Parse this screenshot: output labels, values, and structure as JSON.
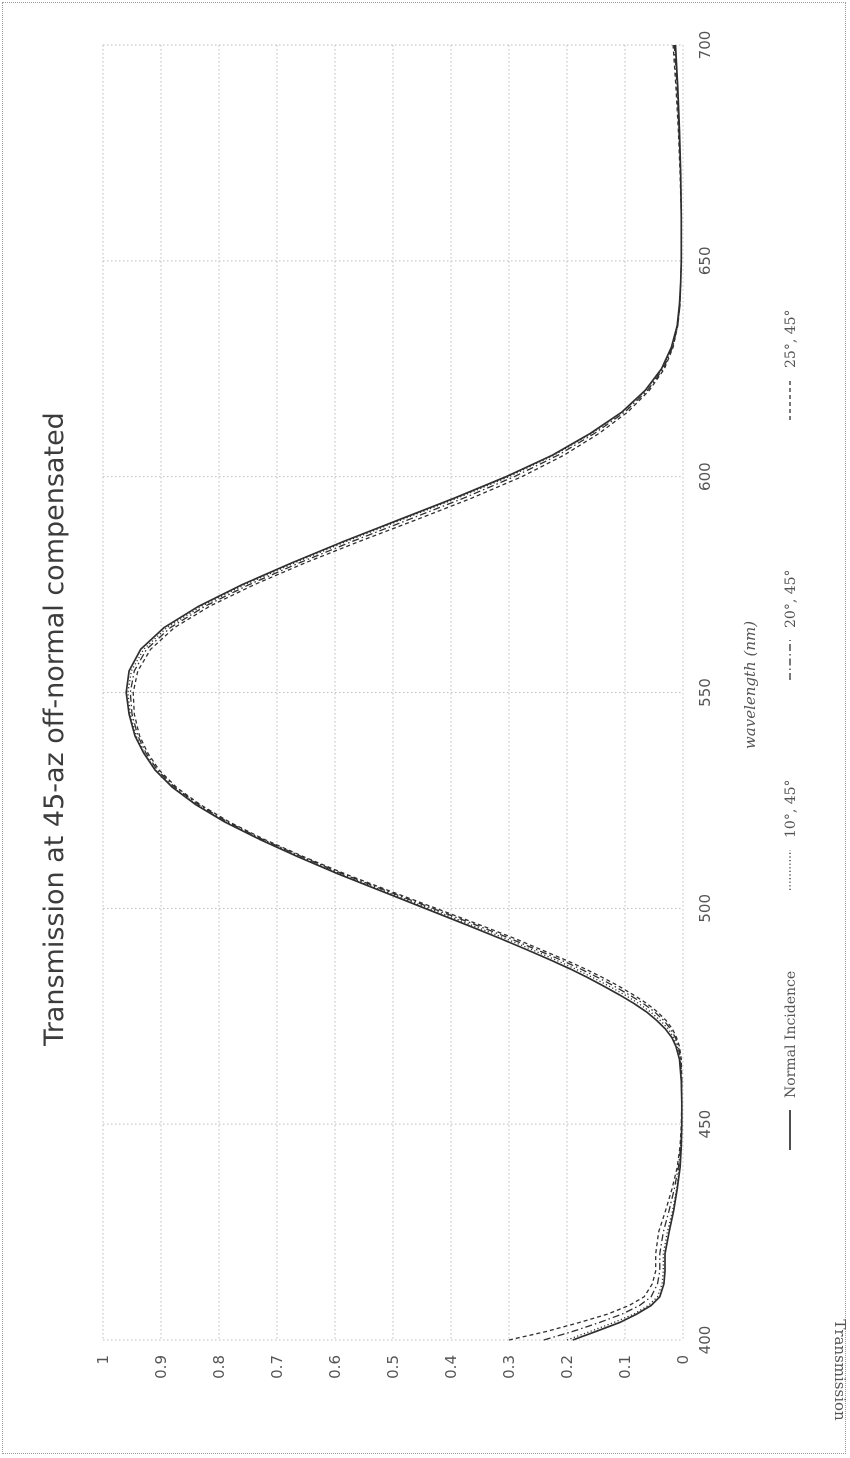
{
  "chart_data": {
    "type": "line",
    "title": "Transmission at 45-az off-normal compensated",
    "xlabel": "wavelength (nm)",
    "ylabel": "Transmission",
    "xlim": [
      400,
      700
    ],
    "ylim": [
      0,
      1
    ],
    "x_ticks": [
      "400",
      "450",
      "500",
      "550",
      "600",
      "650",
      "700"
    ],
    "y_ticks": [
      "0",
      "0.1",
      "0.2",
      "0.3",
      "0.4",
      "0.5",
      "0.6",
      "0.7",
      "0.8",
      "0.9",
      "1"
    ],
    "grid": true,
    "legend_position": "bottom",
    "orientation": "rotated 90° counter-clockwise",
    "x": [
      400,
      402,
      404,
      406,
      408,
      410,
      413,
      416,
      420,
      425,
      430,
      435,
      440,
      445,
      450,
      455,
      460,
      465,
      468,
      470,
      472,
      474,
      476,
      478,
      480,
      482,
      484,
      486,
      488,
      490,
      493,
      496,
      500,
      504,
      508,
      512,
      516,
      520,
      524,
      528,
      532,
      536,
      540,
      545,
      550,
      555,
      560,
      565,
      570,
      575,
      580,
      585,
      590,
      595,
      600,
      605,
      610,
      615,
      620,
      625,
      630,
      635,
      640,
      645,
      650,
      660,
      670,
      680,
      690,
      700
    ],
    "series": [
      {
        "name": "Normal Incidence",
        "style": "solid",
        "values": [
          0.19,
          0.15,
          0.11,
          0.08,
          0.055,
          0.04,
          0.033,
          0.031,
          0.031,
          0.024,
          0.016,
          0.01,
          0.005,
          0.003,
          0.002,
          0.002,
          0.003,
          0.006,
          0.012,
          0.019,
          0.03,
          0.045,
          0.063,
          0.085,
          0.11,
          0.137,
          0.165,
          0.195,
          0.228,
          0.262,
          0.315,
          0.37,
          0.445,
          0.52,
          0.595,
          0.665,
          0.73,
          0.79,
          0.84,
          0.88,
          0.91,
          0.93,
          0.945,
          0.955,
          0.96,
          0.955,
          0.935,
          0.895,
          0.835,
          0.76,
          0.675,
          0.585,
          0.49,
          0.395,
          0.305,
          0.225,
          0.16,
          0.105,
          0.065,
          0.037,
          0.02,
          0.01,
          0.006,
          0.004,
          0.003,
          0.003,
          0.004,
          0.006,
          0.009,
          0.013
        ]
      },
      {
        "name": "10°, 45°",
        "style": "dotted",
        "values": [
          0.2,
          0.16,
          0.12,
          0.085,
          0.06,
          0.044,
          0.036,
          0.034,
          0.034,
          0.027,
          0.018,
          0.011,
          0.006,
          0.003,
          0.002,
          0.002,
          0.003,
          0.005,
          0.01,
          0.016,
          0.025,
          0.039,
          0.056,
          0.077,
          0.101,
          0.128,
          0.156,
          0.186,
          0.219,
          0.253,
          0.306,
          0.362,
          0.438,
          0.515,
          0.591,
          0.662,
          0.728,
          0.788,
          0.838,
          0.879,
          0.909,
          0.929,
          0.943,
          0.953,
          0.957,
          0.951,
          0.93,
          0.89,
          0.83,
          0.755,
          0.67,
          0.58,
          0.485,
          0.39,
          0.3,
          0.222,
          0.158,
          0.104,
          0.064,
          0.036,
          0.019,
          0.01,
          0.006,
          0.004,
          0.003,
          0.003,
          0.004,
          0.006,
          0.009,
          0.014
        ]
      },
      {
        "name": "20°, 45°",
        "style": "dash-dot",
        "values": [
          0.24,
          0.19,
          0.145,
          0.105,
          0.075,
          0.055,
          0.044,
          0.04,
          0.04,
          0.034,
          0.024,
          0.015,
          0.008,
          0.004,
          0.002,
          0.002,
          0.002,
          0.004,
          0.008,
          0.013,
          0.021,
          0.033,
          0.049,
          0.069,
          0.093,
          0.119,
          0.147,
          0.177,
          0.21,
          0.245,
          0.298,
          0.354,
          0.432,
          0.51,
          0.587,
          0.658,
          0.725,
          0.785,
          0.835,
          0.876,
          0.906,
          0.926,
          0.94,
          0.95,
          0.953,
          0.946,
          0.925,
          0.884,
          0.824,
          0.748,
          0.662,
          0.57,
          0.474,
          0.379,
          0.291,
          0.215,
          0.153,
          0.1,
          0.061,
          0.034,
          0.018,
          0.009,
          0.005,
          0.004,
          0.003,
          0.003,
          0.004,
          0.007,
          0.01,
          0.015
        ]
      },
      {
        "name": "25°, 45°",
        "style": "dashed",
        "values": [
          0.3,
          0.235,
          0.18,
          0.13,
          0.093,
          0.067,
          0.053,
          0.047,
          0.047,
          0.042,
          0.03,
          0.019,
          0.01,
          0.005,
          0.003,
          0.002,
          0.002,
          0.003,
          0.006,
          0.011,
          0.018,
          0.029,
          0.044,
          0.063,
          0.086,
          0.111,
          0.139,
          0.169,
          0.202,
          0.237,
          0.29,
          0.347,
          0.426,
          0.505,
          0.583,
          0.655,
          0.722,
          0.782,
          0.832,
          0.873,
          0.903,
          0.923,
          0.937,
          0.946,
          0.948,
          0.94,
          0.918,
          0.877,
          0.816,
          0.739,
          0.652,
          0.558,
          0.46,
          0.365,
          0.278,
          0.205,
          0.145,
          0.095,
          0.058,
          0.032,
          0.017,
          0.009,
          0.005,
          0.004,
          0.003,
          0.003,
          0.005,
          0.008,
          0.012,
          0.017
        ]
      }
    ]
  }
}
